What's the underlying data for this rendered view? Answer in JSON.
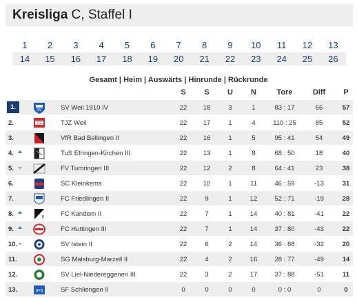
{
  "header": {
    "title_bold": "Kreisliga",
    "title_rest": " C, Staffel I"
  },
  "matchdays": {
    "row1": [
      "1",
      "2",
      "3",
      "4",
      "5",
      "6",
      "7",
      "8",
      "9",
      "10",
      "11",
      "12",
      "13"
    ],
    "row2": [
      "14",
      "15",
      "16",
      "17",
      "18",
      "19",
      "20",
      "21",
      "22",
      "23",
      "24",
      "25",
      "26"
    ]
  },
  "views": {
    "gesamt": "Gesamt",
    "heim": "Heim",
    "auswaerts": "Auswärts",
    "hinrunde": "Hinrunde",
    "rueckrunde": "Rückrunde",
    "sep": " | "
  },
  "columns": {
    "s": "S",
    "s2": "S",
    "u": "U",
    "n": "N",
    "tore": "Tore",
    "diff": "Diff",
    "p": "P"
  },
  "colors": {
    "accent": "#1a3d6e",
    "row_alt": "#eeeeee",
    "trend_up": "#3b7fbf",
    "trend_down": "#b0b0b0"
  },
  "standings": [
    {
      "rank": "1.",
      "trend": "",
      "crest": "crest-blue-shield",
      "team": "SV Weil 1910 IV",
      "s": "22",
      "s2": "18",
      "u": "3",
      "n": "1",
      "tore": "83 : 17",
      "diff": "66",
      "p": "57"
    },
    {
      "rank": "2.",
      "trend": "",
      "crest": "crest-red-white",
      "team": "TJZ Weil",
      "s": "22",
      "s2": "17",
      "u": "1",
      "n": "4",
      "tore": "110 : 25",
      "diff": "85",
      "p": "52"
    },
    {
      "rank": "3.",
      "trend": "",
      "crest": "crest-black-red",
      "team": "VfR Bad Bellingen II",
      "s": "22",
      "s2": "16",
      "u": "1",
      "n": "5",
      "tore": "95 : 41",
      "diff": "54",
      "p": "49"
    },
    {
      "rank": "4.",
      "trend": "up",
      "crest": "crest-black-white",
      "team": "TuS Efringen-Kirchen III",
      "s": "22",
      "s2": "13",
      "u": "1",
      "n": "8",
      "tore": "68 : 50",
      "diff": "18",
      "p": "40"
    },
    {
      "rank": "5.",
      "trend": "down",
      "crest": "crest-dark-stripe",
      "team": "FV Tumringen III",
      "s": "22",
      "s2": "12",
      "u": "2",
      "n": "8",
      "tore": "64 : 41",
      "diff": "23",
      "p": "38"
    },
    {
      "rank": "6.",
      "trend": "",
      "crest": "crest-red-blue",
      "team": "SC Kleinkems",
      "s": "22",
      "s2": "10",
      "u": "1",
      "n": "11",
      "tore": "46 : 59",
      "diff": "-13",
      "p": "31"
    },
    {
      "rank": "7.",
      "trend": "",
      "crest": "crest-blue-white",
      "team": "FC Friedlingen II",
      "s": "22",
      "s2": "9",
      "u": "1",
      "n": "12",
      "tore": "52 : 71",
      "diff": "-19",
      "p": "28"
    },
    {
      "rank": "8.",
      "trend": "up",
      "crest": "crest-black-k",
      "team": "FC Kandern II",
      "s": "22",
      "s2": "7",
      "u": "1",
      "n": "14",
      "tore": "40 : 81",
      "diff": "-41",
      "p": "22"
    },
    {
      "rank": "9.",
      "trend": "up",
      "crest": "crest-red-oval",
      "team": "FC Huttingen III",
      "s": "22",
      "s2": "7",
      "u": "1",
      "n": "14",
      "tore": "37 : 80",
      "diff": "-43",
      "p": "22"
    },
    {
      "rank": "10.",
      "trend": "down",
      "crest": "crest-blue-round",
      "team": "SV Istein II",
      "s": "22",
      "s2": "6",
      "u": "2",
      "n": "14",
      "tore": "36 : 68",
      "diff": "-32",
      "p": "20"
    },
    {
      "rank": "11.",
      "trend": "",
      "crest": "crest-red-ring",
      "team": "SG Malsburg-Marzell II",
      "s": "22",
      "s2": "4",
      "u": "2",
      "n": "16",
      "tore": "28 : 77",
      "diff": "-49",
      "p": "14"
    },
    {
      "rank": "12.",
      "trend": "",
      "crest": "crest-green-round",
      "team": "SV Liel-Niedereggenen III",
      "s": "22",
      "s2": "3",
      "u": "2",
      "n": "17",
      "tore": "37 : 88",
      "diff": "-51",
      "p": "11"
    },
    {
      "rank": "13.",
      "trend": "",
      "crest": "crest-blue-sfs",
      "team": "SF Schliengen II",
      "s": "0",
      "s2": "0",
      "u": "0",
      "n": "0",
      "tore": "0 : 0",
      "diff": "0",
      "p": "0"
    }
  ]
}
